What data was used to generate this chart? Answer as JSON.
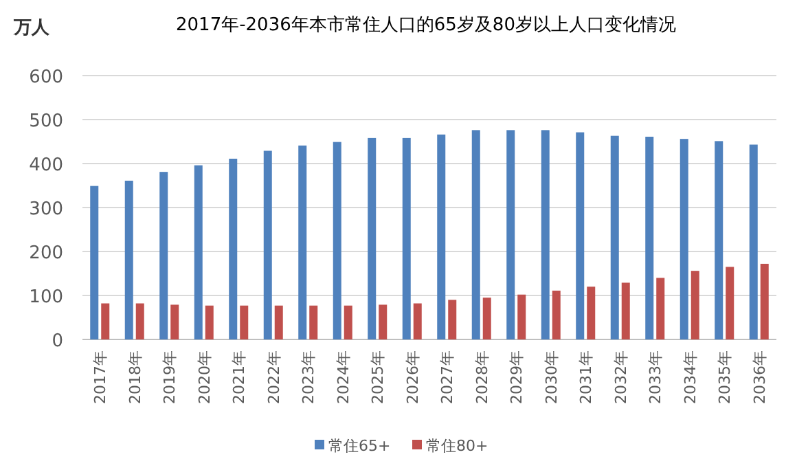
{
  "chart_data": {
    "type": "bar",
    "title": "2017年-2036年本市常住人口的65岁及80岁以上人口变化情况",
    "ylabel": "万人",
    "categories": [
      "2017年",
      "2018年",
      "2019年",
      "2020年",
      "2021年",
      "2022年",
      "2023年",
      "2024年",
      "2025年",
      "2026年",
      "2027年",
      "2028年",
      "2029年",
      "2030年",
      "2031年",
      "2032年",
      "2033年",
      "2034年",
      "2035年",
      "2036年"
    ],
    "series": [
      {
        "name": "常住65+",
        "color": "#4f81bd",
        "values": [
          349,
          361,
          381,
          396,
          411,
          429,
          441,
          449,
          458,
          458,
          466,
          476,
          476,
          476,
          471,
          463,
          461,
          456,
          451,
          443
        ]
      },
      {
        "name": "常住80+",
        "color": "#c0504d",
        "values": [
          82,
          82,
          79,
          77,
          77,
          77,
          77,
          77,
          79,
          82,
          90,
          95,
          102,
          111,
          120,
          129,
          140,
          156,
          165,
          172
        ]
      }
    ],
    "ylim": [
      0,
      600
    ],
    "yticks": [
      0,
      100,
      200,
      300,
      400,
      500,
      600
    ],
    "grid": "y",
    "legend": "bottom"
  }
}
